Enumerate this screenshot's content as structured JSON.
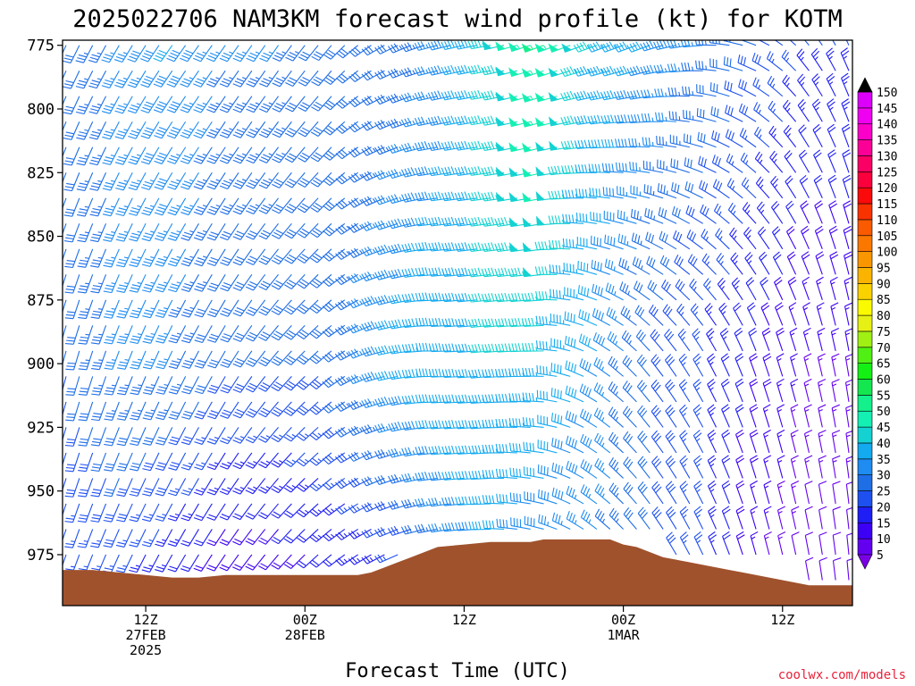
{
  "chart_data": {
    "type": "wind-barb-time-height",
    "title": "2025022706 NAM3KM forecast wind profile (kt) for KOTM",
    "xlabel": "Forecast Time (UTC)",
    "ylabel": "",
    "credit": "coolwx.com/models",
    "units": "kt",
    "y_axis": {
      "quantity": "pressure (hPa)",
      "ticks": [
        775,
        800,
        825,
        850,
        875,
        900,
        925,
        950,
        975
      ],
      "range": [
        773,
        995
      ]
    },
    "x_axis": {
      "range_hours": [
        0,
        59
      ],
      "ticks": [
        {
          "hour": 6,
          "lines": [
            "12Z",
            "27FEB",
            "2025"
          ]
        },
        {
          "hour": 18,
          "lines": [
            "00Z",
            "28FEB"
          ]
        },
        {
          "hour": 30,
          "lines": [
            "12Z"
          ]
        },
        {
          "hour": 42,
          "lines": [
            "00Z",
            "1MAR"
          ]
        },
        {
          "hour": 54,
          "lines": [
            "12Z"
          ]
        }
      ]
    },
    "colorbar": {
      "levels": [
        5,
        10,
        15,
        20,
        25,
        30,
        35,
        40,
        45,
        50,
        55,
        60,
        65,
        70,
        75,
        80,
        85,
        90,
        95,
        100,
        105,
        110,
        115,
        120,
        125,
        130,
        135,
        140,
        145,
        150
      ],
      "colors": [
        "#7a00e6",
        "#6400f0",
        "#3c00f5",
        "#1e1ef5",
        "#1e50f0",
        "#1e6ee6",
        "#1e8cf0",
        "#14aaf0",
        "#14d2d2",
        "#14f0b4",
        "#14f08c",
        "#14e650",
        "#14f014",
        "#50f014",
        "#a0f014",
        "#e6f014",
        "#fafa00",
        "#fad200",
        "#fab400",
        "#fa9600",
        "#fa7800",
        "#fa5a00",
        "#fa3200",
        "#fa0a0a",
        "#fa003c",
        "#fa0064",
        "#fa0096",
        "#fa00c8",
        "#f000f0",
        "#dc00fa"
      ],
      "bottom_color": "#7a00e6",
      "top_color": "#000000"
    },
    "terrain_surface_pressure": [
      {
        "hour": 0,
        "p": 981
      },
      {
        "hour": 2,
        "p": 981
      },
      {
        "hour": 4,
        "p": 982
      },
      {
        "hour": 6,
        "p": 983
      },
      {
        "hour": 8,
        "p": 984
      },
      {
        "hour": 10,
        "p": 984
      },
      {
        "hour": 12,
        "p": 983
      },
      {
        "hour": 16,
        "p": 983
      },
      {
        "hour": 22,
        "p": 983
      },
      {
        "hour": 23,
        "p": 982
      },
      {
        "hour": 24,
        "p": 980
      },
      {
        "hour": 25,
        "p": 978
      },
      {
        "hour": 26,
        "p": 976
      },
      {
        "hour": 27,
        "p": 974
      },
      {
        "hour": 28,
        "p": 972
      },
      {
        "hour": 30,
        "p": 971
      },
      {
        "hour": 32,
        "p": 970
      },
      {
        "hour": 35,
        "p": 970
      },
      {
        "hour": 36,
        "p": 969
      },
      {
        "hour": 41,
        "p": 969
      },
      {
        "hour": 42,
        "p": 971
      },
      {
        "hour": 43,
        "p": 972
      },
      {
        "hour": 44,
        "p": 974
      },
      {
        "hour": 45,
        "p": 976
      },
      {
        "hour": 46,
        "p": 977
      },
      {
        "hour": 47,
        "p": 978
      },
      {
        "hour": 48,
        "p": 979
      },
      {
        "hour": 49,
        "p": 980
      },
      {
        "hour": 50,
        "p": 981
      },
      {
        "hour": 51,
        "p": 982
      },
      {
        "hour": 52,
        "p": 983
      },
      {
        "hour": 53,
        "p": 984
      },
      {
        "hour": 54,
        "p": 985
      },
      {
        "hour": 55,
        "p": 986
      },
      {
        "hour": 56,
        "p": 987
      },
      {
        "hour": 59,
        "p": 987
      }
    ],
    "terrain_color": "#a0522d",
    "barbs": {
      "hours": [
        0,
        1,
        2,
        3,
        4,
        5,
        6,
        7,
        8,
        9,
        10,
        11,
        12,
        13,
        14,
        15,
        16,
        17,
        18,
        19,
        20,
        21,
        22,
        23,
        24,
        25,
        26,
        27,
        28,
        29,
        30,
        31,
        32,
        33,
        34,
        35,
        36,
        37,
        38,
        39,
        40,
        41,
        42,
        43,
        44,
        45,
        46,
        47,
        48,
        49,
        50,
        51,
        52,
        53,
        54,
        55,
        56,
        57,
        58,
        59
      ],
      "levels": [
        775,
        785,
        795,
        805,
        815,
        825,
        835,
        845,
        855,
        865,
        875,
        885,
        895,
        905,
        915,
        925,
        935,
        945,
        955,
        965,
        975,
        985
      ],
      "columns": [
        {
          "h": 0,
          "low_dir": 200,
          "low_spd": 25,
          "mid_dir": 195,
          "mid_spd": 30,
          "top_dir": 205,
          "top_spd": 30
        },
        {
          "h": 4,
          "low_dir": 205,
          "low_spd": 25,
          "mid_dir": 200,
          "mid_spd": 35,
          "top_dir": 210,
          "top_spd": 35
        },
        {
          "h": 8,
          "low_dir": 210,
          "low_spd": 20,
          "mid_dir": 205,
          "mid_spd": 35,
          "top_dir": 215,
          "top_spd": 40
        },
        {
          "h": 12,
          "low_dir": 215,
          "low_spd": 15,
          "mid_dir": 210,
          "mid_spd": 30,
          "top_dir": 215,
          "top_spd": 35
        },
        {
          "h": 16,
          "low_dir": 220,
          "low_spd": 15,
          "mid_dir": 220,
          "mid_spd": 30,
          "top_dir": 215,
          "top_spd": 35
        },
        {
          "h": 20,
          "low_dir": 230,
          "low_spd": 20,
          "mid_dir": 230,
          "mid_spd": 30,
          "top_dir": 220,
          "top_spd": 30
        },
        {
          "h": 24,
          "low_dir": 240,
          "low_spd": 20,
          "mid_dir": 255,
          "mid_spd": 40,
          "top_dir": 240,
          "top_spd": 30
        },
        {
          "h": 28,
          "low_dir": 255,
          "low_spd": 30,
          "mid_dir": 270,
          "mid_spd": 45,
          "top_dir": 255,
          "top_spd": 35
        },
        {
          "h": 32,
          "low_dir": 270,
          "low_spd": 40,
          "mid_dir": 265,
          "mid_spd": 45,
          "top_dir": 260,
          "top_spd": 45
        },
        {
          "h": 36,
          "low_dir": 290,
          "low_spd": 35,
          "mid_dir": 270,
          "mid_spd": 45,
          "top_dir": 250,
          "top_spd": 55
        },
        {
          "h": 40,
          "low_dir": 310,
          "low_spd": 35,
          "mid_dir": 300,
          "mid_spd": 40,
          "top_dir": 250,
          "top_spd": 45
        },
        {
          "h": 44,
          "low_dir": 325,
          "low_spd": 30,
          "mid_dir": 320,
          "mid_spd": 30,
          "top_dir": 250,
          "top_spd": 40
        },
        {
          "h": 48,
          "low_dir": 335,
          "low_spd": 25,
          "mid_dir": 330,
          "mid_spd": 25,
          "top_dir": 265,
          "top_spd": 35
        },
        {
          "h": 52,
          "low_dir": 345,
          "low_spd": 15,
          "mid_dir": 340,
          "mid_spd": 20,
          "top_dir": 290,
          "top_spd": 30
        },
        {
          "h": 56,
          "low_dir": 350,
          "low_spd": 10,
          "mid_dir": 345,
          "mid_spd": 15,
          "top_dir": 320,
          "top_spd": 25
        },
        {
          "h": 59,
          "low_dir": 355,
          "low_spd": 10,
          "mid_dir": 350,
          "mid_spd": 15,
          "top_dir": 335,
          "top_spd": 25
        }
      ]
    }
  }
}
